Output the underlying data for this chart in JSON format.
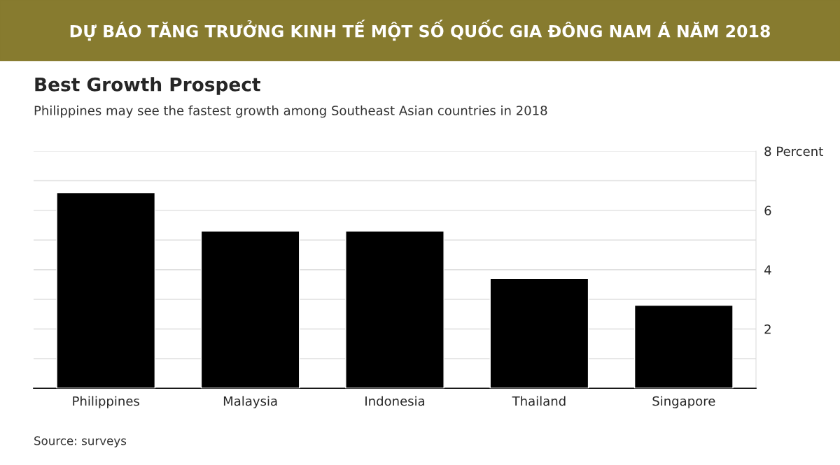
{
  "chart_data": {
    "type": "bar",
    "title": "DỰ BÁO TĂNG TRƯỞNG KINH TẾ MỘT SỐ QUỐC GIA ĐÔNG NAM Á NĂM 2018",
    "subtitle": "Best Growth Prospect",
    "annotations": [
      "Philippines may see the fastest growth among Southeast Asian countries in 2018",
      "Source: surveys"
    ],
    "categories": [
      "Philippines",
      "Malaysia",
      "Indonesia",
      "Thailand",
      "Singapore"
    ],
    "values": [
      6.6,
      5.3,
      5.3,
      3.7,
      2.8
    ],
    "color": "#000000",
    "ylim": [
      0,
      8
    ],
    "yticks": [
      {
        "value": 1,
        "label": null
      },
      2,
      {
        "value": 3,
        "label": null
      },
      4,
      {
        "value": 5,
        "label": null
      },
      6,
      {
        "value": 7,
        "label": null
      },
      {
        "value": 8,
        "label": "8 Percent"
      }
    ],
    "grid": "y",
    "legend": false
  }
}
